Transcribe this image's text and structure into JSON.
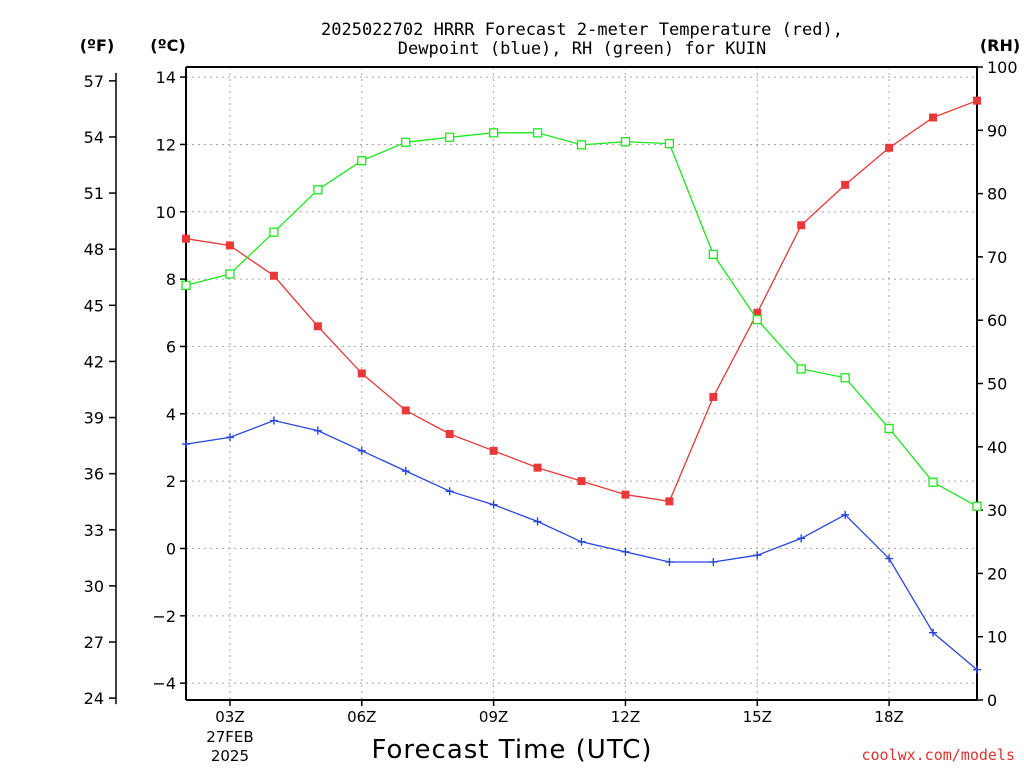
{
  "title_line1": "2025022702 HRRR Forecast 2-meter Temperature (red),",
  "title_line2": "Dewpoint (blue), RH (green) for KUIN",
  "unit_f": "(ºF)",
  "unit_c": "(ºC)",
  "unit_rh": "(RH)",
  "credit": "coolwx.com/models",
  "colors": {
    "temperature": "#e83838",
    "dewpoint": "#2a44e0",
    "rh": "#1ee81e",
    "axis": "#000000"
  },
  "chart_data": {
    "type": "line",
    "title": "2025022702 HRRR Forecast 2-meter Temperature (red), Dewpoint (blue), RH (green) for KUIN",
    "xlabel": "Forecast Time (UTC)",
    "x_ticks": [
      {
        "hour": 3,
        "label": "03Z",
        "sub1": "27FEB",
        "sub2": "2025"
      },
      {
        "hour": 6,
        "label": "06Z",
        "sub1": "",
        "sub2": ""
      },
      {
        "hour": 9,
        "label": "09Z",
        "sub1": "",
        "sub2": ""
      },
      {
        "hour": 12,
        "label": "12Z",
        "sub1": "",
        "sub2": ""
      },
      {
        "hour": 15,
        "label": "15Z",
        "sub1": "",
        "sub2": ""
      },
      {
        "hour": 18,
        "label": "18Z",
        "sub1": "",
        "sub2": ""
      }
    ],
    "xlim": [
      2,
      20
    ],
    "hours": [
      2,
      3,
      4,
      5,
      6,
      7,
      8,
      9,
      10,
      11,
      12,
      13,
      14,
      15,
      16,
      17,
      18,
      19,
      20
    ],
    "left_axis_c": {
      "ylim": [
        -4.5,
        14.3
      ],
      "ticks": [
        -4,
        -2,
        0,
        2,
        4,
        6,
        8,
        10,
        12,
        14
      ]
    },
    "left_axis_f": {
      "ticks": [
        24,
        27,
        30,
        33,
        36,
        39,
        42,
        45,
        48,
        51,
        54,
        57
      ]
    },
    "right_axis_rh": {
      "ylim": [
        0,
        100
      ],
      "ticks": [
        0,
        10,
        20,
        30,
        40,
        50,
        60,
        70,
        80,
        90,
        100
      ]
    },
    "grid": true,
    "series": [
      {
        "name": "Temperature (red)",
        "axis": "c",
        "marker": "filled-square",
        "values": [
          9.2,
          9.0,
          8.1,
          6.6,
          5.2,
          4.1,
          3.4,
          2.9,
          2.4,
          2.0,
          1.6,
          1.4,
          4.5,
          7.0,
          9.6,
          10.8,
          11.9,
          12.8,
          13.3
        ]
      },
      {
        "name": "Dewpoint (blue)",
        "axis": "c",
        "marker": "plus",
        "values": [
          3.1,
          3.3,
          3.8,
          3.5,
          2.9,
          2.3,
          1.7,
          1.3,
          0.8,
          0.2,
          -0.1,
          -0.4,
          -0.4,
          -0.2,
          0.3,
          1.0,
          -0.3,
          -2.5,
          -3.6
        ]
      },
      {
        "name": "RH (green)",
        "axis": "rh",
        "marker": "open-square",
        "values": [
          65.5,
          67.3,
          73.9,
          80.6,
          85.2,
          88.1,
          88.9,
          89.6,
          89.6,
          87.7,
          88.2,
          87.9,
          70.4,
          60.1,
          52.3,
          50.9,
          42.9,
          34.4,
          30.6
        ]
      }
    ]
  }
}
